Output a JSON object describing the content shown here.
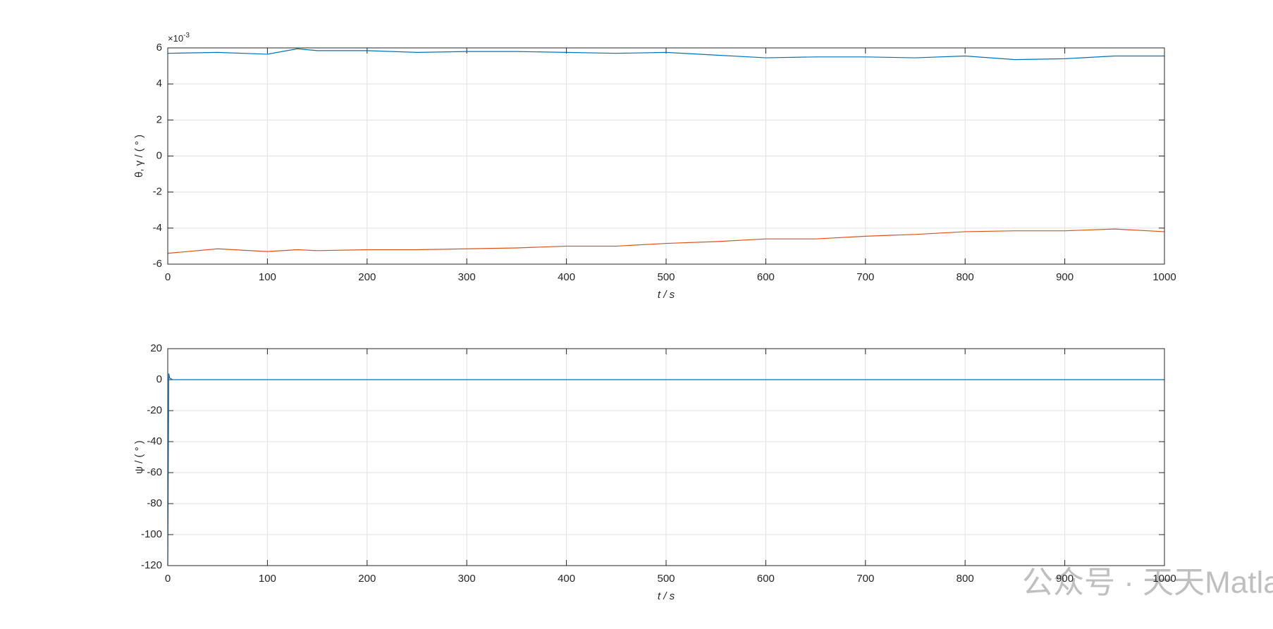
{
  "chart_data": [
    {
      "type": "line",
      "y_multiplier": {
        "base": "×10",
        "power": "-3"
      },
      "xlabel": "t  / s",
      "ylabel": "θ, γ / ( ° )",
      "x": [
        0,
        50,
        100,
        130,
        150,
        200,
        250,
        300,
        350,
        400,
        450,
        500,
        550,
        600,
        650,
        700,
        750,
        800,
        850,
        900,
        950,
        1000
      ],
      "series": [
        {
          "color": "#0072bd",
          "values": [
            5.7,
            5.75,
            5.65,
            5.95,
            5.85,
            5.85,
            5.75,
            5.8,
            5.8,
            5.75,
            5.7,
            5.75,
            5.6,
            5.45,
            5.5,
            5.5,
            5.45,
            5.55,
            5.35,
            5.4,
            5.55,
            5.55
          ]
        },
        {
          "color": "#d95319",
          "values": [
            -5.4,
            -5.15,
            -5.3,
            -5.2,
            -5.25,
            -5.2,
            -5.2,
            -5.15,
            -5.1,
            -5.0,
            -5.0,
            -4.85,
            -4.75,
            -4.6,
            -4.6,
            -4.45,
            -4.35,
            -4.2,
            -4.15,
            -4.15,
            -4.05,
            -4.2
          ]
        }
      ],
      "xlim": [
        0,
        1000
      ],
      "xticks": [
        0,
        100,
        200,
        300,
        400,
        500,
        600,
        700,
        800,
        900,
        1000
      ],
      "ylim": [
        -6,
        6
      ],
      "yticks": [
        -6,
        -4,
        -2,
        0,
        2,
        4,
        6
      ],
      "grid": true
    },
    {
      "type": "line",
      "xlabel": "t  / s",
      "ylabel": "ψ / ( ° )",
      "x": [
        0,
        1,
        2,
        5,
        10,
        1000
      ],
      "series": [
        {
          "color": "#0072bd",
          "values": [
            -120,
            4,
            1,
            0,
            0,
            0
          ]
        }
      ],
      "xlim": [
        0,
        1000
      ],
      "xticks": [
        0,
        100,
        200,
        300,
        400,
        500,
        600,
        700,
        800,
        900,
        1000
      ],
      "ylim": [
        -120,
        20
      ],
      "yticks": [
        -120,
        -100,
        -80,
        -60,
        -40,
        -20,
        0,
        20
      ],
      "grid": true
    }
  ],
  "watermark": "公众号 · 天天Matlab"
}
